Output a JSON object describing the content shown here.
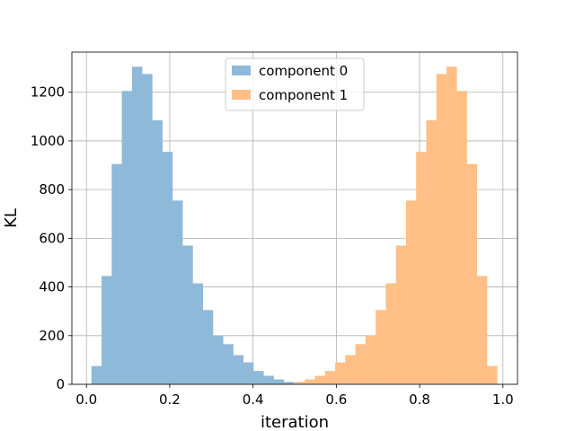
{
  "chart_data": {
    "type": "bar",
    "title": "",
    "xlabel": "iteration",
    "ylabel": "KL",
    "xlim": [
      -0.035,
      1.035
    ],
    "ylim": [
      0,
      1365
    ],
    "xticks": [
      0.0,
      0.2,
      0.4,
      0.6,
      0.8,
      1.0
    ],
    "xtick_labels": [
      "0.0",
      "0.2",
      "0.4",
      "0.6",
      "0.8",
      "1.0"
    ],
    "yticks": [
      0,
      200,
      400,
      600,
      800,
      1000,
      1200
    ],
    "ytick_labels": [
      "0",
      "200",
      "400",
      "600",
      "800",
      "1000",
      "1200"
    ],
    "grid": true,
    "legend_position": "top-center",
    "bin_width": 0.0243,
    "series": [
      {
        "name": "component 0",
        "color": "#8fb9d9",
        "bin_start": 0.012,
        "values": [
          75,
          445,
          905,
          1205,
          1305,
          1275,
          1085,
          955,
          755,
          570,
          415,
          305,
          200,
          165,
          120,
          90,
          55,
          35,
          20,
          10
        ]
      },
      {
        "name": "component 1",
        "color": "#ffbf86",
        "bin_start": 0.5,
        "values": [
          10,
          20,
          35,
          55,
          90,
          120,
          165,
          200,
          305,
          415,
          570,
          755,
          955,
          1085,
          1275,
          1305,
          1205,
          905,
          445,
          75
        ]
      }
    ]
  }
}
